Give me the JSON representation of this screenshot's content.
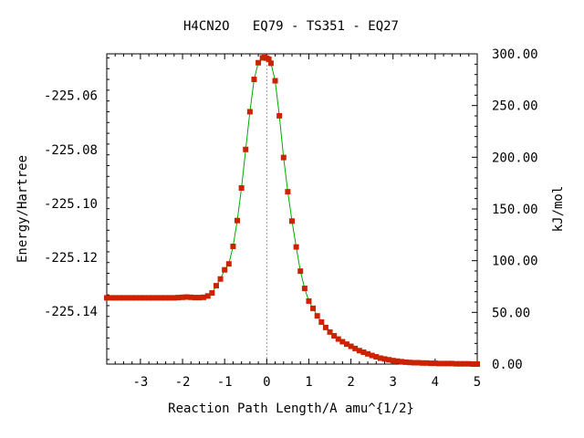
{
  "chart_data": {
    "type": "line",
    "title": "H4CN2O   EQ79 - TS351 - EQ27",
    "xlabel": "Reaction Path Length/A amu^{1/2}",
    "ylabel": "Energy/Hartree",
    "y2label": "kJ/mol",
    "xlim": [
      -3.8,
      5.0
    ],
    "ylim": [
      -225.1597,
      -225.0445
    ],
    "y2lim": [
      0.0,
      300.0
    ],
    "x_ticks": [
      -3,
      -2,
      -1,
      0,
      1,
      2,
      3,
      4,
      5
    ],
    "x_tick_labels": [
      "-3",
      "-2",
      "-1",
      "0",
      "1",
      "2",
      "3",
      "4",
      "5"
    ],
    "y_ticks": [
      -225.06,
      -225.08,
      -225.1,
      -225.12,
      -225.14
    ],
    "y_tick_labels": [
      "-225.06",
      "-225.08",
      "-225.10",
      "-225.12",
      "-225.14"
    ],
    "y2_ticks": [
      0,
      50,
      100,
      150,
      200,
      250,
      300
    ],
    "y2_tick_labels": [
      "0.00",
      "50.00",
      "100.00",
      "150.00",
      "200.00",
      "250.00",
      "300.00"
    ],
    "ts_marker_x": 0.0,
    "grid": false,
    "colors": {
      "line": "#00aa00",
      "points": "#cc2200",
      "ts_line": "#999999"
    },
    "series": [
      {
        "x": [
          -3.8,
          -3.7,
          -3.6,
          -3.5,
          -3.4,
          -3.3,
          -3.2,
          -3.1,
          -3.0,
          -2.9,
          -2.8,
          -2.7,
          -2.6,
          -2.5,
          -2.4,
          -2.3,
          -2.2,
          -2.1,
          -2.0,
          -1.9,
          -1.8,
          -1.7,
          -1.6,
          -1.5,
          -1.4,
          -1.3,
          -1.2,
          -1.1,
          -1.0,
          -0.9,
          -0.8,
          -0.7,
          -0.6,
          -0.5,
          -0.4,
          -0.3,
          -0.2,
          -0.1,
          -0.05,
          0.0,
          0.05,
          0.1,
          0.2,
          0.3,
          0.4,
          0.5,
          0.6,
          0.7,
          0.8,
          0.9,
          1.0,
          1.1,
          1.2,
          1.3,
          1.4,
          1.5,
          1.6,
          1.7,
          1.8,
          1.9,
          2.0,
          2.1,
          2.2,
          2.3,
          2.4,
          2.5,
          2.6,
          2.7,
          2.8,
          2.9,
          3.0,
          3.1,
          3.2,
          3.3,
          3.4,
          3.5,
          3.6,
          3.7,
          3.8,
          3.9,
          4.0,
          4.1,
          4.2,
          4.3,
          4.4,
          4.5,
          4.6,
          4.7,
          4.8,
          4.9,
          5.0
        ],
        "y": [
          -225.1351,
          -225.1351,
          -225.1351,
          -225.1351,
          -225.1351,
          -225.1351,
          -225.1351,
          -225.1351,
          -225.1351,
          -225.1351,
          -225.1351,
          -225.1351,
          -225.1351,
          -225.1351,
          -225.1351,
          -225.1351,
          -225.1351,
          -225.135,
          -225.1349,
          -225.1348,
          -225.1349,
          -225.135,
          -225.135,
          -225.1349,
          -225.1344,
          -225.1333,
          -225.1306,
          -225.1281,
          -225.1247,
          -225.1225,
          -225.116,
          -225.1064,
          -225.0943,
          -225.08,
          -225.066,
          -225.054,
          -225.0478,
          -225.046,
          -225.0458,
          -225.0461,
          -225.0465,
          -225.048,
          -225.0545,
          -225.0675,
          -225.083,
          -225.0957,
          -225.1066,
          -225.1162,
          -225.1252,
          -225.1316,
          -225.1363,
          -225.139,
          -225.1418,
          -225.1441,
          -225.1461,
          -225.1478,
          -225.1492,
          -225.1504,
          -225.1514,
          -225.1523,
          -225.1531,
          -225.1539,
          -225.1547,
          -225.1553,
          -225.1559,
          -225.1565,
          -225.157,
          -225.1575,
          -225.1578,
          -225.1581,
          -225.1584,
          -225.1586,
          -225.1588,
          -225.159,
          -225.1591,
          -225.1592,
          -225.1592,
          -225.1593,
          -225.1593,
          -225.1594,
          -225.1594,
          -225.1595,
          -225.1595,
          -225.1595,
          -225.1595,
          -225.1596,
          -225.1596,
          -225.1596,
          -225.1596,
          -225.1597,
          -225.1597
        ]
      }
    ]
  }
}
